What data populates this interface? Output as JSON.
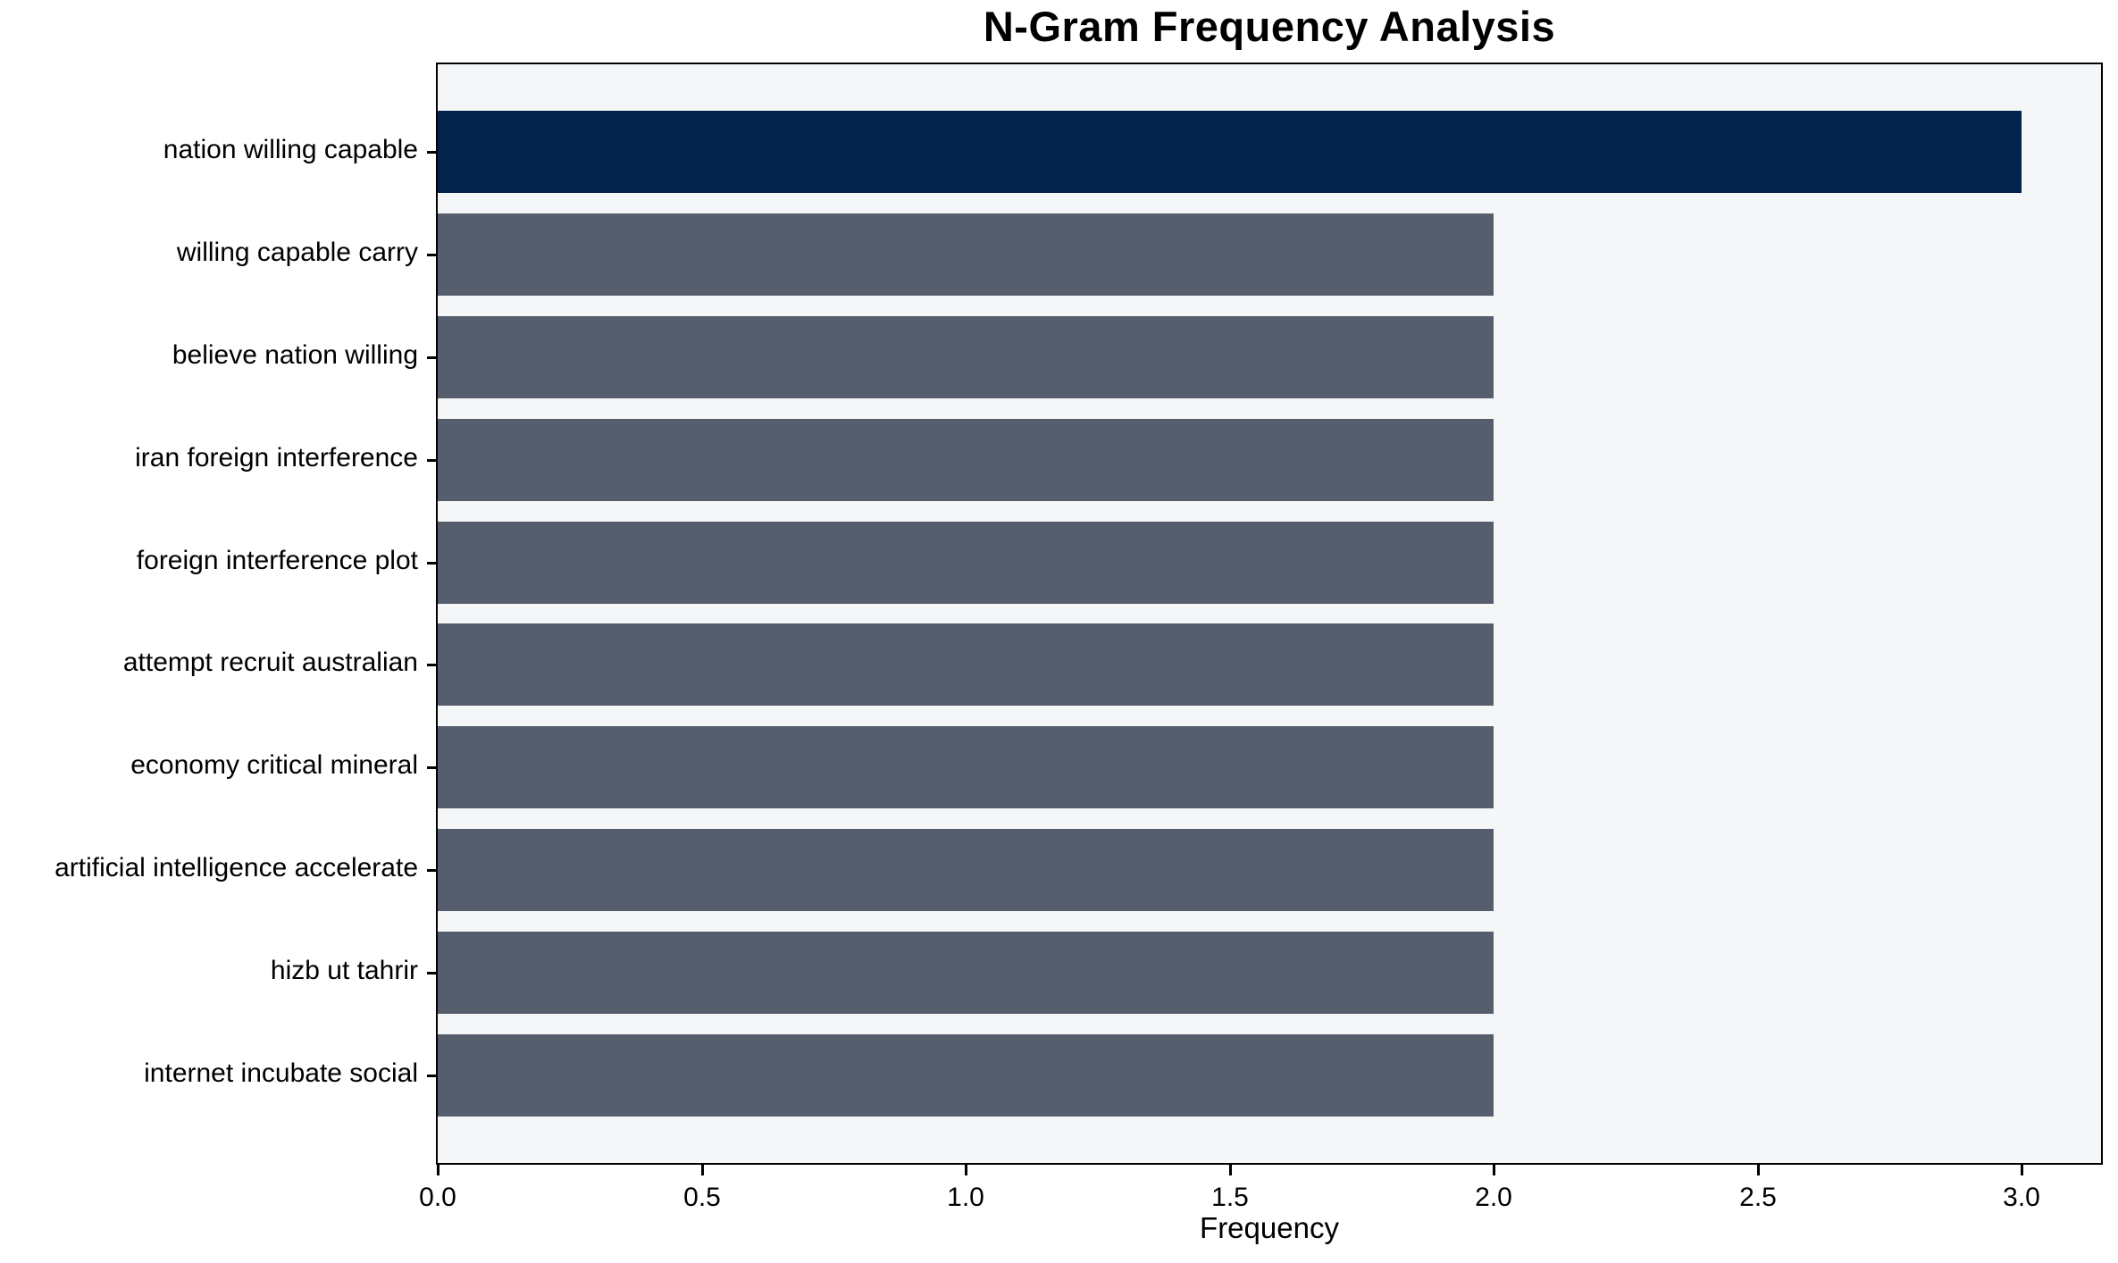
{
  "chart_data": {
    "type": "bar",
    "orientation": "horizontal",
    "title": "N-Gram Frequency Analysis",
    "xlabel": "Frequency",
    "ylabel": "",
    "categories": [
      "nation willing capable",
      "willing capable carry",
      "believe nation willing",
      "iran foreign interference",
      "foreign interference plot",
      "attempt recruit australian",
      "economy critical mineral",
      "artificial intelligence accelerate",
      "hizb ut tahrir",
      "internet incubate social"
    ],
    "values": [
      3,
      2,
      2,
      2,
      2,
      2,
      2,
      2,
      2,
      2
    ],
    "xlim": [
      0,
      3.15
    ],
    "xticks": [
      0,
      0.5,
      1,
      1.5,
      2,
      2.5,
      3
    ],
    "xtick_labels": [
      "0.0",
      "0.5",
      "1.0",
      "1.5",
      "2.0",
      "2.5",
      "3.0"
    ],
    "grid": false,
    "legend": false,
    "colors": {
      "bar_highlight": "#02234B",
      "bar_default": "#565D6D",
      "plot_background": "#F5F6F7",
      "figure_background": "#FFFFFF",
      "axis": "#000000",
      "text": "#000000"
    }
  }
}
